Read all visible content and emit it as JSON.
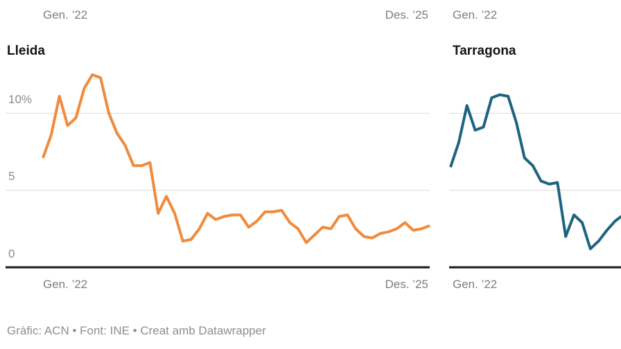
{
  "chart_data": [
    {
      "type": "line",
      "title": "Lleida",
      "color": "#f08a3c",
      "x_start_label": "Gen. ’22",
      "x_end_label": "Des. ’25",
      "frequency": "monthly",
      "x_start": "Gener 2022",
      "x_end": "Desembre 2025",
      "y_tick_labels": [
        "10%",
        "5",
        "0"
      ],
      "y_gridline_values": [
        10,
        5,
        0
      ],
      "ylim": [
        0,
        13
      ],
      "unit": "%",
      "values": [
        7.1,
        8.6,
        11.1,
        9.2,
        9.7,
        11.6,
        12.5,
        12.3,
        10.0,
        8.7,
        7.9,
        6.6,
        6.6,
        6.8,
        3.5,
        4.6,
        3.5,
        1.7,
        1.8,
        2.5,
        3.5,
        3.1,
        3.3,
        3.4,
        3.4,
        2.6,
        3.0,
        3.6,
        3.6,
        3.7,
        2.9,
        2.5,
        1.6,
        2.1,
        2.6,
        2.5,
        3.3,
        3.4,
        2.5,
        2.0,
        1.9,
        2.2,
        2.3,
        2.5,
        2.9,
        2.4,
        2.5,
        2.7
      ]
    },
    {
      "type": "line",
      "title": "Tarragona",
      "color": "#1d6480",
      "x_start_label": "Gen. ’22",
      "frequency": "monthly",
      "x_start": "Gener 2022",
      "clipped_at_right_edge": true,
      "y_gridline_values": [
        10,
        5,
        0
      ],
      "ylim": [
        0,
        13
      ],
      "unit": "%",
      "values": [
        6.5,
        8.1,
        10.5,
        8.9,
        9.1,
        11.0,
        11.2,
        11.1,
        9.4,
        7.1,
        6.6,
        5.6,
        5.4,
        5.5,
        2.0,
        3.4,
        2.9,
        1.2,
        1.7,
        2.4,
        3.0,
        3.4
      ]
    }
  ],
  "style": {
    "grid_color": "#dcdcdc",
    "baseline_color": "#1a1a1a",
    "axis_text_color": "#7d7d7d"
  },
  "footer": {
    "text": "Gràfic: ACN • Font: INE • Creat amb Datawrapper"
  }
}
